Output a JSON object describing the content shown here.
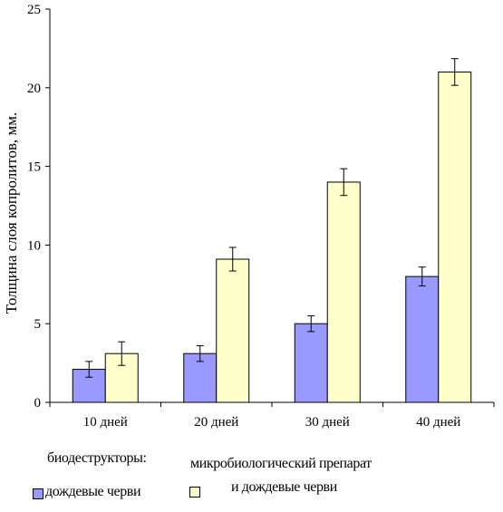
{
  "chart_data": {
    "type": "bar",
    "categories": [
      "10 дней",
      "20 дней",
      "30 дней",
      "40 дней"
    ],
    "series": [
      {
        "values": [
          2.1,
          3.1,
          5.0,
          8.0
        ],
        "errors": [
          0.5,
          0.5,
          0.5,
          0.6
        ],
        "color": "#9999ff"
      },
      {
        "values": [
          3.1,
          9.1,
          14.0,
          21.0
        ],
        "errors": [
          0.75,
          0.75,
          0.85,
          0.85
        ],
        "color": "#ffffcc"
      }
    ],
    "ylabel": "Толщина слоя копролитов, мм.",
    "ylim": [
      0,
      25
    ],
    "yticks": [
      0,
      5,
      10,
      15,
      20,
      25
    ],
    "grid": false,
    "legend": {
      "heading": "биодеструкторы:",
      "items": [
        {
          "label": "дождевые черви",
          "color": "#9999ff"
        },
        {
          "label_line1": "микробиологический препарат",
          "label_line2": "и дождевые черви",
          "color": "#ffffcc"
        }
      ]
    }
  }
}
